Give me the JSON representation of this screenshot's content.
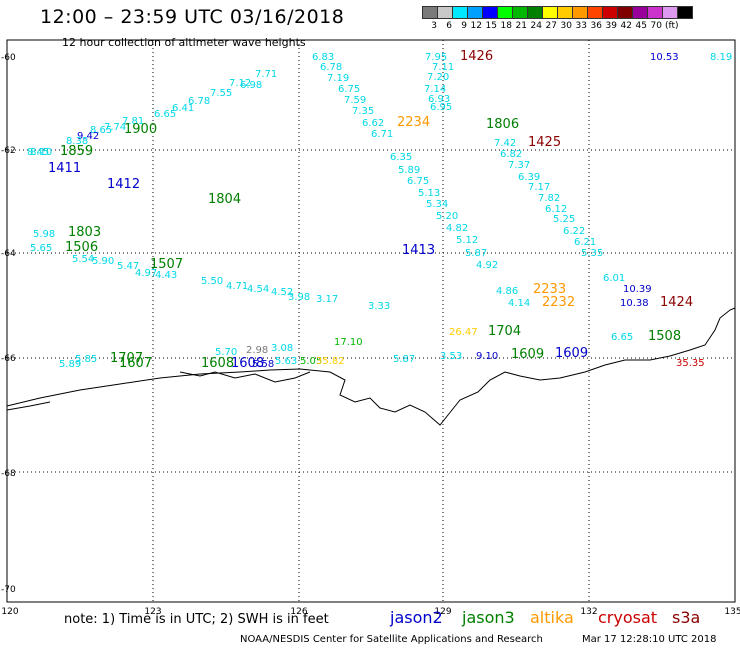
{
  "header": {
    "title": "12:00 – 23:59 UTC 03/16/2018",
    "subtitle": "12 hour collection of altimeter wave heights"
  },
  "color_scale": {
    "colors": [
      "#7a7a7a",
      "#c8c8c8",
      "#00e8ff",
      "#00a0ff",
      "#0000ff",
      "#00ff00",
      "#00b800",
      "#008000",
      "#ffff00",
      "#ffcc00",
      "#ff9900",
      "#ff4400",
      "#cc0000",
      "#800000",
      "#990099",
      "#cc33cc",
      "#dd99ee",
      "#000000"
    ],
    "labels": [
      "3",
      "6",
      "9",
      "12",
      "15",
      "18",
      "21",
      "24",
      "27",
      "30",
      "33",
      "36",
      "39",
      "42",
      "45",
      "70",
      "(ft)"
    ]
  },
  "axes": {
    "lat_labels": [
      "-60",
      "-62",
      "-64",
      "-66",
      "-68",
      "-70"
    ],
    "lon_labels": [
      "120",
      "123",
      "126",
      "129",
      "132",
      "135"
    ]
  },
  "observations": [
    {
      "text": "7.95",
      "c": "#00d8e8"
    },
    {
      "text": "1426",
      "c": "#8b0000"
    },
    {
      "text": "10.53",
      "c": "#0000cc"
    },
    {
      "text": "8.19",
      "c": "#00d8e8"
    },
    {
      "text": "6.83",
      "c": "#00d8e8"
    },
    {
      "text": "6.78",
      "c": "#00d8e8"
    },
    {
      "text": "7.11",
      "c": "#00d8e8"
    },
    {
      "text": "7.20",
      "c": "#00d8e8"
    },
    {
      "text": "7.19",
      "c": "#00d8e8"
    },
    {
      "text": "7.14",
      "c": "#00d8e8"
    },
    {
      "text": "6.75",
      "c": "#00d8e8"
    },
    {
      "text": "6.93",
      "c": "#00d8e8"
    },
    {
      "text": "7.59",
      "c": "#00d8e8"
    },
    {
      "text": "6.95",
      "c": "#00d8e8"
    },
    {
      "text": "7.35",
      "c": "#00d8e8"
    },
    {
      "text": "2234",
      "c": "#ff9900"
    },
    {
      "text": "6.62",
      "c": "#00d8e8"
    },
    {
      "text": "1806",
      "c": "#008000"
    },
    {
      "text": "6.71",
      "c": "#00d8e8"
    },
    {
      "text": "7.42",
      "c": "#00d8e8"
    },
    {
      "text": "1425",
      "c": "#8b0000"
    },
    {
      "text": "6.82",
      "c": "#00d8e8"
    },
    {
      "text": "6.35",
      "c": "#00d8e8"
    },
    {
      "text": "7.37",
      "c": "#00d8e8"
    },
    {
      "text": "5.89",
      "c": "#00d8e8"
    },
    {
      "text": "6.39",
      "c": "#00d8e8"
    },
    {
      "text": "6.75",
      "c": "#00d8e8"
    },
    {
      "text": "7.17",
      "c": "#00d8e8"
    },
    {
      "text": "5.13",
      "c": "#00d8e8"
    },
    {
      "text": "7.82",
      "c": "#00d8e8"
    },
    {
      "text": "5.34",
      "c": "#00d8e8"
    },
    {
      "text": "6.12",
      "c": "#00d8e8"
    },
    {
      "text": "5.20",
      "c": "#00d8e8"
    },
    {
      "text": "5.25",
      "c": "#00d8e8"
    },
    {
      "text": "4.82",
      "c": "#00d8e8"
    },
    {
      "text": "6.22",
      "c": "#00d8e8"
    },
    {
      "text": "5.12",
      "c": "#00d8e8"
    },
    {
      "text": "6.21",
      "c": "#00d8e8"
    },
    {
      "text": "5.87",
      "c": "#00d8e8"
    },
    {
      "text": "5.35",
      "c": "#00d8e8"
    },
    {
      "text": "4.92",
      "c": "#00d8e8"
    },
    {
      "text": "6.01",
      "c": "#00d8e8"
    },
    {
      "text": "10.39",
      "c": "#0000cc"
    },
    {
      "text": "2233",
      "c": "#ff9900"
    },
    {
      "text": "4.86",
      "c": "#00d8e8"
    },
    {
      "text": "4.14",
      "c": "#00d8e8"
    },
    {
      "text": "2232",
      "c": "#ff9900"
    },
    {
      "text": "10.38",
      "c": "#0000cc"
    },
    {
      "text": "1424",
      "c": "#8b0000"
    },
    {
      "text": "7.71",
      "c": "#00d8e8"
    },
    {
      "text": "7.12",
      "c": "#00d8e8"
    },
    {
      "text": "6.98",
      "c": "#00d8e8"
    },
    {
      "text": "7.55",
      "c": "#00d8e8"
    },
    {
      "text": "6.78",
      "c": "#00d8e8"
    },
    {
      "text": "6.41",
      "c": "#00d8e8"
    },
    {
      "text": "6.65",
      "c": "#00d8e8"
    },
    {
      "text": "7.81",
      "c": "#00d8e8"
    },
    {
      "text": "7.74",
      "c": "#00d8e8"
    },
    {
      "text": "8.65",
      "c": "#00d8e8"
    },
    {
      "text": "9.42",
      "c": "#0000cc"
    },
    {
      "text": "8.38",
      "c": "#00d8e8"
    },
    {
      "text": "1900",
      "c": "#008000"
    },
    {
      "text": "8.45",
      "c": "#00d8e8"
    },
    {
      "text": "8.10",
      "c": "#00d8e8"
    },
    {
      "text": "1859",
      "c": "#008000"
    },
    {
      "text": "1411",
      "c": "#0000cc"
    },
    {
      "text": "1412",
      "c": "#0000cc"
    },
    {
      "text": "1804",
      "c": "#008000"
    },
    {
      "text": "5.98",
      "c": "#00d8e8"
    },
    {
      "text": "1803",
      "c": "#008000"
    },
    {
      "text": "5.65",
      "c": "#00d8e8"
    },
    {
      "text": "1506",
      "c": "#008000"
    },
    {
      "text": "5.54",
      "c": "#00d8e8"
    },
    {
      "text": "5.90",
      "c": "#00d8e8"
    },
    {
      "text": "5.47",
      "c": "#00d8e8"
    },
    {
      "text": "1507",
      "c": "#008000"
    },
    {
      "text": "4.97",
      "c": "#00d8e8"
    },
    {
      "text": "4.43",
      "c": "#00d8e8"
    },
    {
      "text": "5.50",
      "c": "#00d8e8"
    },
    {
      "text": "4.71",
      "c": "#00d8e8"
    },
    {
      "text": "4.54",
      "c": "#00d8e8"
    },
    {
      "text": "4.52",
      "c": "#00d8e8"
    },
    {
      "text": "3.98",
      "c": "#00d8e8"
    },
    {
      "text": "3.17",
      "c": "#00d8e8"
    },
    {
      "text": "1413",
      "c": "#0000cc"
    },
    {
      "text": "3.33",
      "c": "#00d8e8"
    },
    {
      "text": "26.47",
      "c": "#ffcc00"
    },
    {
      "text": "1704",
      "c": "#008000"
    },
    {
      "text": "6.65",
      "c": "#00d8e8"
    },
    {
      "text": "1508",
      "c": "#008000"
    },
    {
      "text": "17.10",
      "c": "#00b800"
    },
    {
      "text": "5.70",
      "c": "#00d8e8"
    },
    {
      "text": "2.98",
      "c": "#7a7a7a"
    },
    {
      "text": "3.08",
      "c": "#00d8e8"
    },
    {
      "text": "5.87",
      "c": "#00d8e8"
    },
    {
      "text": "3.53",
      "c": "#00d8e8"
    },
    {
      "text": "9.10",
      "c": "#0000cc"
    },
    {
      "text": "1609",
      "c": "#008000"
    },
    {
      "text": "1609",
      "c": "#0000cc"
    },
    {
      "text": "5.85",
      "c": "#00d8e8"
    },
    {
      "text": "1707",
      "c": "#008000"
    },
    {
      "text": "5.89",
      "c": "#00d8e8"
    },
    {
      "text": "1607",
      "c": "#008000"
    },
    {
      "text": "1608",
      "c": "#0000cc"
    },
    {
      "text": "1608",
      "c": "#008000"
    },
    {
      "text": "5.58",
      "c": "#0000cc"
    },
    {
      "text": "5.63",
      "c": "#00d8e8"
    },
    {
      "text": "5.05",
      "c": "#00b800"
    },
    {
      "text": "35.82",
      "c": "#ffcc00"
    },
    {
      "text": "35.35",
      "c": "#cc0000"
    }
  ],
  "footer": {
    "note": "note: 1) Time is in UTC; 2) SWH is in feet",
    "satellites": [
      {
        "name": "jason2",
        "color": "#0000cc"
      },
      {
        "name": "jason3",
        "color": "#008000"
      },
      {
        "name": "altika",
        "color": "#ff9900"
      },
      {
        "name": "cryosat",
        "color": "#cc0000"
      },
      {
        "name": "s3a",
        "color": "#8b0000"
      }
    ],
    "credit": "NOAA/NESDIS Center for Satellite Applications and Research",
    "generated": "Mar 17 12:28:10 UTC 2018"
  }
}
